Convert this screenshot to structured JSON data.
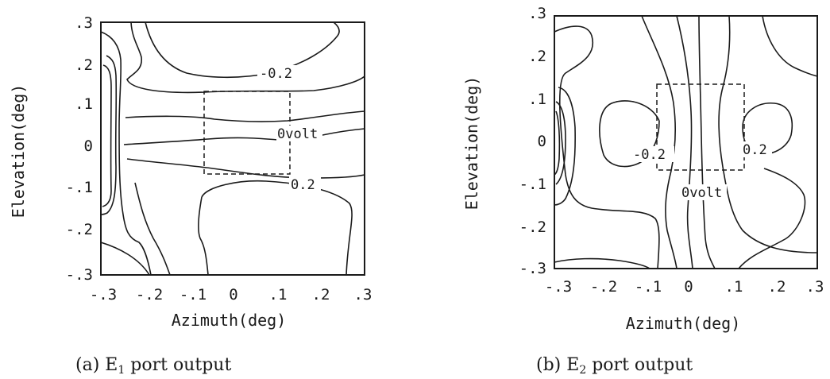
{
  "chart_data": [
    {
      "type": "contour",
      "xlabel": "Azimuth(deg)",
      "ylabel": "Elevation(deg)",
      "xlim": [
        -0.3,
        0.3
      ],
      "ylim": [
        -0.3,
        0.3
      ],
      "x_ticks": [
        "-.3",
        "-.2",
        "-.1",
        "0",
        ".1",
        ".2",
        ".3"
      ],
      "y_ticks": [
        ".3",
        ".2",
        ".1",
        "0",
        "-.1",
        "-.2",
        "-.3"
      ],
      "contour_labels": [
        "-0.2",
        "0volt",
        "0.2"
      ],
      "caption": "(a) E",
      "caption_sub": "1",
      "caption_rest": " port output",
      "dashed_box": {
        "x": [
          -0.075,
          0.125
        ],
        "y": [
          -0.065,
          0.135
        ]
      }
    },
    {
      "type": "contour",
      "xlabel": "Azimuth(deg)",
      "ylabel": "Elevation(deg)",
      "xlim": [
        -0.3,
        0.3
      ],
      "ylim": [
        -0.3,
        0.3
      ],
      "x_ticks": [
        "-.3",
        "-.2",
        "-.1",
        "0",
        ".1",
        ".2",
        ".3"
      ],
      "y_ticks": [
        ".3",
        ".2",
        ".1",
        "0",
        "-.1",
        "-.2",
        "-.3"
      ],
      "contour_labels": [
        "-0.2",
        "0volt",
        "0.2"
      ],
      "caption": "(b) E",
      "caption_sub": "2",
      "caption_rest": " port output",
      "dashed_box": {
        "x": [
          -0.085,
          0.135
        ],
        "y": [
          -0.065,
          0.135
        ]
      }
    }
  ]
}
